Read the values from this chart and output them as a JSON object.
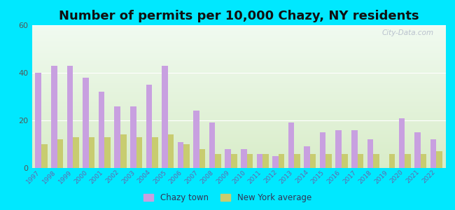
{
  "title": "Number of permits per 10,000 Chazy, NY residents",
  "years": [
    1997,
    1998,
    1999,
    2000,
    2001,
    2002,
    2003,
    2004,
    2005,
    2006,
    2007,
    2008,
    2009,
    2010,
    2011,
    2012,
    2013,
    2014,
    2015,
    2016,
    2017,
    2018,
    2019,
    2020,
    2021,
    2022
  ],
  "chazy": [
    40,
    43,
    43,
    38,
    32,
    26,
    26,
    35,
    43,
    11,
    24,
    19,
    8,
    8,
    6,
    5,
    19,
    9,
    15,
    16,
    16,
    12,
    0,
    21,
    15,
    12
  ],
  "ny_avg": [
    10,
    12,
    13,
    13,
    13,
    14,
    13,
    13,
    14,
    10,
    8,
    6,
    6,
    6,
    6,
    6,
    6,
    6,
    6,
    6,
    6,
    6,
    6,
    6,
    6,
    7
  ],
  "chazy_color": "#c8a0e0",
  "ny_color": "#c8cc70",
  "bg_outer": "#00e8ff",
  "grad_top": "#f0faf0",
  "grad_bottom": "#d8ecc8",
  "ylim": [
    0,
    60
  ],
  "yticks": [
    0,
    20,
    40,
    60
  ],
  "bar_width": 0.38,
  "title_fontsize": 13,
  "watermark": "City-Data.com",
  "legend_labels": [
    "Chazy town",
    "New York average"
  ]
}
